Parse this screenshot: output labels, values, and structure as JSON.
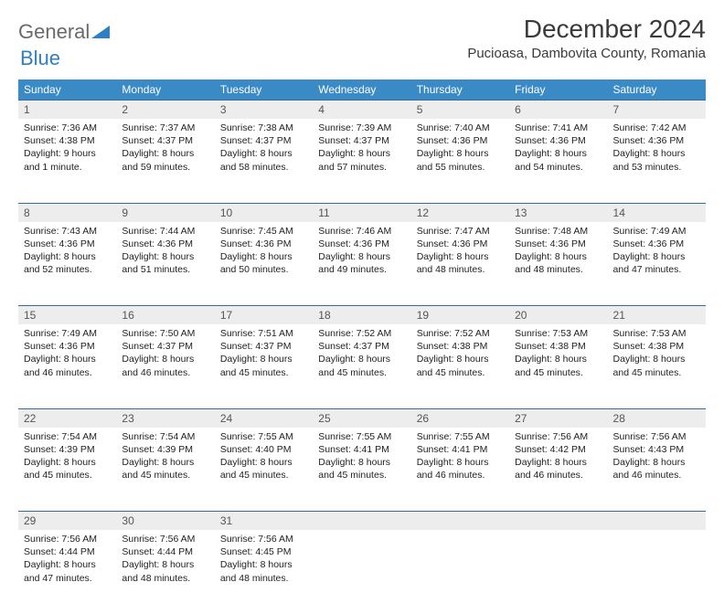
{
  "logo": {
    "text1": "General",
    "text2": "Blue"
  },
  "title": "December 2024",
  "location": "Pucioasa, Dambovita County, Romania",
  "colors": {
    "header_bg": "#3a8ac6",
    "header_fg": "#ffffff",
    "daynum_bg": "#ededed",
    "row_border": "#3a6a94",
    "logo_gray": "#6a6a6a",
    "logo_blue": "#2f7fc1"
  },
  "fonts": {
    "title_size": 28,
    "location_size": 15,
    "dayhead_size": 12,
    "cell_size": 10.5
  },
  "day_headers": [
    "Sunday",
    "Monday",
    "Tuesday",
    "Wednesday",
    "Thursday",
    "Friday",
    "Saturday"
  ],
  "weeks": [
    [
      {
        "n": "1",
        "sr": "7:36 AM",
        "ss": "4:38 PM",
        "dl": "9 hours and 1 minute."
      },
      {
        "n": "2",
        "sr": "7:37 AM",
        "ss": "4:37 PM",
        "dl": "8 hours and 59 minutes."
      },
      {
        "n": "3",
        "sr": "7:38 AM",
        "ss": "4:37 PM",
        "dl": "8 hours and 58 minutes."
      },
      {
        "n": "4",
        "sr": "7:39 AM",
        "ss": "4:37 PM",
        "dl": "8 hours and 57 minutes."
      },
      {
        "n": "5",
        "sr": "7:40 AM",
        "ss": "4:36 PM",
        "dl": "8 hours and 55 minutes."
      },
      {
        "n": "6",
        "sr": "7:41 AM",
        "ss": "4:36 PM",
        "dl": "8 hours and 54 minutes."
      },
      {
        "n": "7",
        "sr": "7:42 AM",
        "ss": "4:36 PM",
        "dl": "8 hours and 53 minutes."
      }
    ],
    [
      {
        "n": "8",
        "sr": "7:43 AM",
        "ss": "4:36 PM",
        "dl": "8 hours and 52 minutes."
      },
      {
        "n": "9",
        "sr": "7:44 AM",
        "ss": "4:36 PM",
        "dl": "8 hours and 51 minutes."
      },
      {
        "n": "10",
        "sr": "7:45 AM",
        "ss": "4:36 PM",
        "dl": "8 hours and 50 minutes."
      },
      {
        "n": "11",
        "sr": "7:46 AM",
        "ss": "4:36 PM",
        "dl": "8 hours and 49 minutes."
      },
      {
        "n": "12",
        "sr": "7:47 AM",
        "ss": "4:36 PM",
        "dl": "8 hours and 48 minutes."
      },
      {
        "n": "13",
        "sr": "7:48 AM",
        "ss": "4:36 PM",
        "dl": "8 hours and 48 minutes."
      },
      {
        "n": "14",
        "sr": "7:49 AM",
        "ss": "4:36 PM",
        "dl": "8 hours and 47 minutes."
      }
    ],
    [
      {
        "n": "15",
        "sr": "7:49 AM",
        "ss": "4:36 PM",
        "dl": "8 hours and 46 minutes."
      },
      {
        "n": "16",
        "sr": "7:50 AM",
        "ss": "4:37 PM",
        "dl": "8 hours and 46 minutes."
      },
      {
        "n": "17",
        "sr": "7:51 AM",
        "ss": "4:37 PM",
        "dl": "8 hours and 45 minutes."
      },
      {
        "n": "18",
        "sr": "7:52 AM",
        "ss": "4:37 PM",
        "dl": "8 hours and 45 minutes."
      },
      {
        "n": "19",
        "sr": "7:52 AM",
        "ss": "4:38 PM",
        "dl": "8 hours and 45 minutes."
      },
      {
        "n": "20",
        "sr": "7:53 AM",
        "ss": "4:38 PM",
        "dl": "8 hours and 45 minutes."
      },
      {
        "n": "21",
        "sr": "7:53 AM",
        "ss": "4:38 PM",
        "dl": "8 hours and 45 minutes."
      }
    ],
    [
      {
        "n": "22",
        "sr": "7:54 AM",
        "ss": "4:39 PM",
        "dl": "8 hours and 45 minutes."
      },
      {
        "n": "23",
        "sr": "7:54 AM",
        "ss": "4:39 PM",
        "dl": "8 hours and 45 minutes."
      },
      {
        "n": "24",
        "sr": "7:55 AM",
        "ss": "4:40 PM",
        "dl": "8 hours and 45 minutes."
      },
      {
        "n": "25",
        "sr": "7:55 AM",
        "ss": "4:41 PM",
        "dl": "8 hours and 45 minutes."
      },
      {
        "n": "26",
        "sr": "7:55 AM",
        "ss": "4:41 PM",
        "dl": "8 hours and 46 minutes."
      },
      {
        "n": "27",
        "sr": "7:56 AM",
        "ss": "4:42 PM",
        "dl": "8 hours and 46 minutes."
      },
      {
        "n": "28",
        "sr": "7:56 AM",
        "ss": "4:43 PM",
        "dl": "8 hours and 46 minutes."
      }
    ],
    [
      {
        "n": "29",
        "sr": "7:56 AM",
        "ss": "4:44 PM",
        "dl": "8 hours and 47 minutes."
      },
      {
        "n": "30",
        "sr": "7:56 AM",
        "ss": "4:44 PM",
        "dl": "8 hours and 48 minutes."
      },
      {
        "n": "31",
        "sr": "7:56 AM",
        "ss": "4:45 PM",
        "dl": "8 hours and 48 minutes."
      },
      null,
      null,
      null,
      null
    ]
  ],
  "labels": {
    "sunrise": "Sunrise:",
    "sunset": "Sunset:",
    "daylight": "Daylight:"
  }
}
